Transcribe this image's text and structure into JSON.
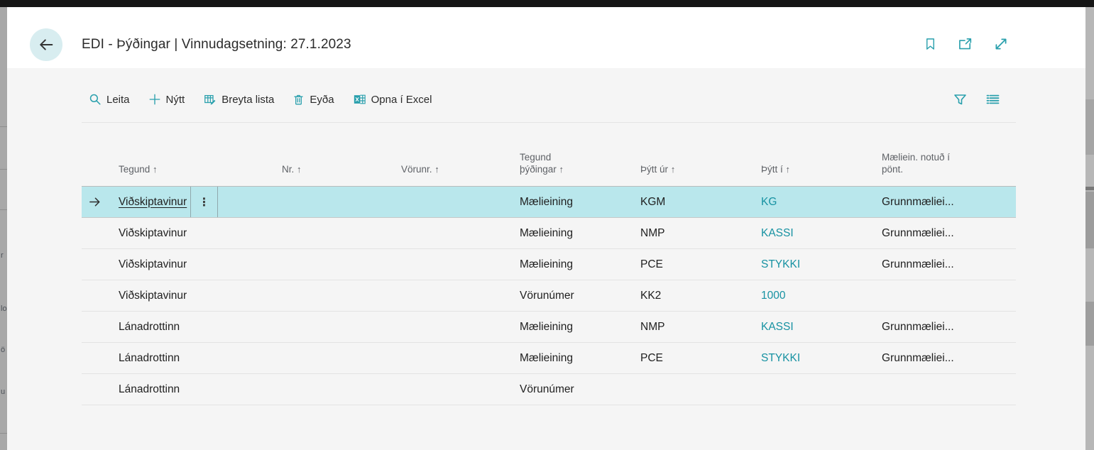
{
  "colors": {
    "accent_icon": "#2aa0ad",
    "link": "#1792a2",
    "selected_row_bg": "#b9e7ec",
    "header_text": "#5e6166",
    "back_circle_bg": "#d8edf0"
  },
  "page": {
    "title": "EDI - Þýðingar | Vinnudagsetning: 27.1.2023"
  },
  "header_actions": [
    {
      "name": "bookmark-icon"
    },
    {
      "name": "open-in-new-window-icon"
    },
    {
      "name": "expand-icon"
    }
  ],
  "toolbar": {
    "items": [
      {
        "icon": "search-icon",
        "label": "Leita"
      },
      {
        "icon": "plus-icon",
        "label": "Nýtt"
      },
      {
        "icon": "edit-list-icon",
        "label": "Breyta lista"
      },
      {
        "icon": "trash-icon",
        "label": "Eyða"
      },
      {
        "icon": "excel-icon",
        "label": "Opna í Excel"
      }
    ],
    "right_icons": [
      {
        "name": "filter-icon"
      },
      {
        "name": "show-list-icon"
      }
    ]
  },
  "table": {
    "sort_glyph": "↑",
    "menu_glyph": "⋮",
    "row_arrow_glyph": "→",
    "columns": [
      {
        "label": "Tegund",
        "sort": true,
        "wrap": ""
      },
      {
        "label": "Nr.",
        "sort": true,
        "wrap": ""
      },
      {
        "label": "Vörunr.",
        "sort": true,
        "wrap": ""
      },
      {
        "label": "Tegund þýðingar",
        "sort": true,
        "wrap": "narrow"
      },
      {
        "label": "Þýtt úr",
        "sort": true,
        "wrap": ""
      },
      {
        "label": "Þýtt í",
        "sort": true,
        "wrap": ""
      },
      {
        "label": "Mæliein. notuð í pönt.",
        "sort": false,
        "wrap": "wide"
      }
    ],
    "rows": [
      {
        "selected": true,
        "cells": [
          "Viðskiptavinur",
          "",
          "",
          "Mælieining",
          "KGM",
          "KG",
          "Grunnmæliei..."
        ]
      },
      {
        "selected": false,
        "cells": [
          "Viðskiptavinur",
          "",
          "",
          "Mælieining",
          "NMP",
          "KASSI",
          "Grunnmæliei..."
        ]
      },
      {
        "selected": false,
        "cells": [
          "Viðskiptavinur",
          "",
          "",
          "Mælieining",
          "PCE",
          "STYKKI",
          "Grunnmæliei..."
        ]
      },
      {
        "selected": false,
        "cells": [
          "Viðskiptavinur",
          "",
          "",
          "Vörunúmer",
          "KK2",
          "1000",
          ""
        ]
      },
      {
        "selected": false,
        "cells": [
          "Lánadrottinn",
          "",
          "",
          "Mælieining",
          "NMP",
          "KASSI",
          "Grunnmæliei..."
        ]
      },
      {
        "selected": false,
        "cells": [
          "Lánadrottinn",
          "",
          "",
          "Mælieining",
          "PCE",
          "STYKKI",
          "Grunnmæliei..."
        ]
      },
      {
        "selected": false,
        "cells": [
          "Lánadrottinn",
          "",
          "",
          "Vörunúmer",
          "",
          "",
          ""
        ]
      }
    ]
  },
  "background_edge": {
    "fragments": [
      "r",
      "lo",
      "ö",
      "u"
    ]
  }
}
